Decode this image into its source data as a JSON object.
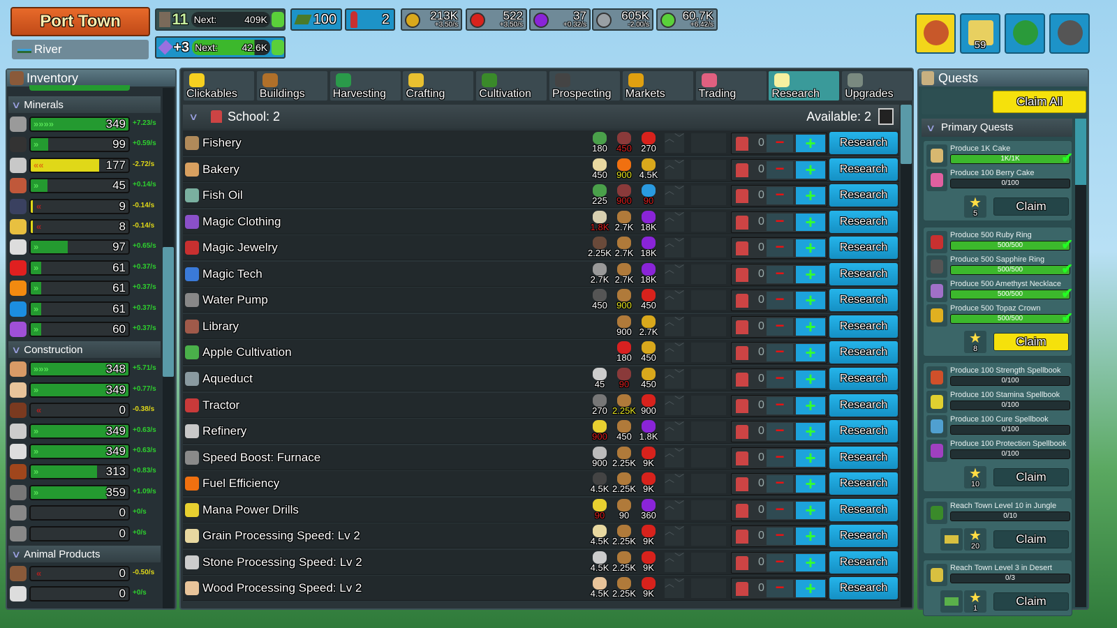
{
  "header": {
    "town": "Port Town",
    "biome": "River",
    "level": {
      "value": "11",
      "next_label": "Next:",
      "next_value": "409K"
    },
    "prestige": {
      "value": "+3",
      "next_label": "Next:",
      "next_value": "42.6K"
    },
    "land": "100",
    "population": "2",
    "currencies": [
      {
        "icon": "gold-coin-icon",
        "color": "#d9a81c",
        "value": "213K",
        "rate": "+3.50/s"
      },
      {
        "icon": "ruby-coin-icon",
        "color": "#d8221c",
        "value": "522",
        "rate": "+3.50/s"
      },
      {
        "icon": "amethyst-coin-icon",
        "color": "#8a24d8",
        "value": "37",
        "rate": "+0.32/s"
      },
      {
        "icon": "silver-coin-icon",
        "color": "#9aa0a4",
        "value": "605K",
        "rate": "-2.00/s"
      },
      {
        "icon": "xp-icon",
        "color": "#5ad03a",
        "value": "60.7K",
        "rate": "+6.42/s"
      }
    ],
    "buttons": [
      {
        "icon": "treasure-chest-icon",
        "color": "#f3d51a"
      },
      {
        "icon": "star-icon",
        "color": "#1d93c8",
        "badge": "59"
      },
      {
        "icon": "globe-icon",
        "color": "#1d93c8"
      },
      {
        "icon": "gear-icon",
        "color": "#1d93c8"
      }
    ]
  },
  "inventory": {
    "title": "Inventory",
    "sections": [
      {
        "name": "Minerals",
        "items": [
          {
            "value": "349",
            "rate": "+7.23/s",
            "fill": 1.0,
            "trend": "up",
            "arrows": ">>>>",
            "color": "#9a9a9a"
          },
          {
            "value": "99",
            "rate": "+0.59/s",
            "fill": 0.18,
            "trend": "up",
            "arrows": ">",
            "color": "#333"
          },
          {
            "value": "177",
            "rate": "-2.72/s",
            "fill": 0.7,
            "trend": "down",
            "arrows": "<<",
            "color": "#c8c8c8"
          },
          {
            "value": "45",
            "rate": "+0.14/s",
            "fill": 0.17,
            "trend": "up",
            "arrows": ">",
            "color": "#c0583a"
          },
          {
            "value": "9",
            "rate": "-0.14/s",
            "fill": 0.02,
            "trend": "down",
            "arrows": "<",
            "color": "#3a4160"
          },
          {
            "value": "8",
            "rate": "-0.14/s",
            "fill": 0.02,
            "trend": "down",
            "arrows": "<",
            "color": "#e8c040"
          },
          {
            "value": "97",
            "rate": "+0.65/s",
            "fill": 0.38,
            "trend": "up",
            "arrows": ">",
            "color": "#ddd"
          },
          {
            "value": "61",
            "rate": "+0.37/s",
            "fill": 0.11,
            "trend": "up",
            "arrows": ">",
            "color": "#e02020"
          },
          {
            "value": "61",
            "rate": "+0.37/s",
            "fill": 0.11,
            "trend": "up",
            "arrows": ">",
            "color": "#f28a10"
          },
          {
            "value": "61",
            "rate": "+0.37/s",
            "fill": 0.11,
            "trend": "up",
            "arrows": ">",
            "color": "#1c8ee0"
          },
          {
            "value": "60",
            "rate": "+0.37/s",
            "fill": 0.11,
            "trend": "up",
            "arrows": ">",
            "color": "#a050d8"
          }
        ]
      },
      {
        "name": "Construction",
        "items": [
          {
            "value": "348",
            "rate": "+5.71/s",
            "fill": 1.0,
            "trend": "up",
            "arrows": ">>>",
            "color": "#d89a66"
          },
          {
            "value": "349",
            "rate": "+0.77/s",
            "fill": 1.0,
            "trend": "up",
            "arrows": ">",
            "color": "#e8c49a"
          },
          {
            "value": "0",
            "rate": "-0.38/s",
            "fill": 0,
            "trend": "down",
            "arrows": "<",
            "color": "#7a3a20"
          },
          {
            "value": "349",
            "rate": "+0.63/s",
            "fill": 1.0,
            "trend": "up",
            "arrows": ">",
            "color": "#ccc"
          },
          {
            "value": "349",
            "rate": "+0.63/s",
            "fill": 1.0,
            "trend": "up",
            "arrows": ">",
            "color": "#ddd"
          },
          {
            "value": "313",
            "rate": "+0.83/s",
            "fill": 0.68,
            "trend": "up",
            "arrows": ">",
            "color": "#a0461c"
          },
          {
            "value": "359",
            "rate": "+1.09/s",
            "fill": 0.78,
            "trend": "up",
            "arrows": ">",
            "color": "#777"
          },
          {
            "value": "0",
            "rate": "+0/s",
            "fill": 0,
            "trend": "flat",
            "arrows": "",
            "color": "#888"
          },
          {
            "value": "0",
            "rate": "+0/s",
            "fill": 0,
            "trend": "flat",
            "arrows": "",
            "color": "#888"
          }
        ]
      },
      {
        "name": "Animal Products",
        "items": [
          {
            "value": "0",
            "rate": "-0.50/s",
            "fill": 0,
            "trend": "down",
            "arrows": "<",
            "color": "#8a5a3a"
          },
          {
            "value": "0",
            "rate": "+0/s",
            "fill": 0,
            "trend": "flat",
            "arrows": "",
            "color": "#ddd"
          }
        ]
      }
    ]
  },
  "tabs": [
    {
      "label": "Clickables",
      "color": "#f5d020"
    },
    {
      "label": "Buildings",
      "color": "#b0702a"
    },
    {
      "label": "Harvesting",
      "color": "#2a9a4a"
    },
    {
      "label": "Crafting",
      "color": "#e8c030"
    },
    {
      "label": "Cultivation",
      "color": "#3a8a2a"
    },
    {
      "label": "Prospecting",
      "color": "#444"
    },
    {
      "label": "Markets",
      "color": "#e0a010"
    },
    {
      "label": "Trading",
      "color": "#e06080"
    },
    {
      "label": "Research",
      "color": "#f5f0a0",
      "active": true
    },
    {
      "label": "Upgrades",
      "color": "#7a8a80"
    }
  ],
  "research": {
    "school_label": "School: 2",
    "available_label": "Available: 2",
    "button_label": "Research",
    "rows": [
      {
        "name": "Fishery",
        "icon": "#b08a5a",
        "count": "0",
        "costs": [
          {
            "v": "180",
            "c": "white",
            "i": "#4aa04a"
          },
          {
            "v": "450",
            "c": "red",
            "i": "#8a3a3a"
          },
          {
            "v": "270",
            "c": "white",
            "i": "#d8221c"
          }
        ]
      },
      {
        "name": "Bakery",
        "icon": "#d8a060",
        "count": "0",
        "costs": [
          {
            "v": "450",
            "c": "white",
            "i": "#e8d8a0"
          },
          {
            "v": "900",
            "c": "yellow",
            "i": "#f07010"
          },
          {
            "v": "4.5K",
            "c": "white",
            "i": "#d9a81c"
          }
        ]
      },
      {
        "name": "Fish Oil",
        "icon": "#7ab0a0",
        "count": "0",
        "costs": [
          {
            "v": "225",
            "c": "white",
            "i": "#4aa04a"
          },
          {
            "v": "900",
            "c": "red",
            "i": "#8a3a3a"
          },
          {
            "v": "90",
            "c": "red",
            "i": "#2a9ae0"
          }
        ]
      },
      {
        "name": "Magic Clothing",
        "icon": "#8a50c8",
        "count": "0",
        "costs": [
          {
            "v": "1.8K",
            "c": "red",
            "i": "#d8cfb0"
          },
          {
            "v": "2.7K",
            "c": "white",
            "i": "#b07a3a"
          },
          {
            "v": "18K",
            "c": "white",
            "i": "#8a24d8"
          }
        ]
      },
      {
        "name": "Magic Jewelry",
        "icon": "#c83030",
        "count": "0",
        "costs": [
          {
            "v": "2.25K",
            "c": "white",
            "i": "#6a4a3a"
          },
          {
            "v": "2.7K",
            "c": "white",
            "i": "#b07a3a"
          },
          {
            "v": "18K",
            "c": "white",
            "i": "#8a24d8"
          }
        ]
      },
      {
        "name": "Magic Tech",
        "icon": "#3a7ad8",
        "count": "0",
        "costs": [
          {
            "v": "2.7K",
            "c": "white",
            "i": "#999"
          },
          {
            "v": "2.7K",
            "c": "white",
            "i": "#b07a3a"
          },
          {
            "v": "18K",
            "c": "white",
            "i": "#8a24d8"
          }
        ]
      },
      {
        "name": "Water Pump",
        "icon": "#888",
        "count": "0",
        "costs": [
          {
            "v": "450",
            "c": "white",
            "i": "#555"
          },
          {
            "v": "900",
            "c": "yellow",
            "i": "#b07a3a"
          },
          {
            "v": "450",
            "c": "white",
            "i": "#d8221c"
          }
        ]
      },
      {
        "name": "Library",
        "icon": "#a05a4a",
        "count": "0",
        "costs": [
          {
            "v": "900",
            "c": "white",
            "i": "#b07a3a"
          },
          {
            "v": "2.7K",
            "c": "white",
            "i": "#d9a81c"
          }
        ]
      },
      {
        "name": "Apple Cultivation",
        "icon": "#4ab04a",
        "count": "0",
        "costs": [
          {
            "v": "180",
            "c": "white",
            "i": "#d82020"
          },
          {
            "v": "450",
            "c": "white",
            "i": "#d9a81c"
          }
        ]
      },
      {
        "name": "Aqueduct",
        "icon": "#8a9aa0",
        "count": "0",
        "costs": [
          {
            "v": "45",
            "c": "white",
            "i": "#ccc"
          },
          {
            "v": "90",
            "c": "red",
            "i": "#8a3a3a"
          },
          {
            "v": "450",
            "c": "white",
            "i": "#d9a81c"
          }
        ]
      },
      {
        "name": "Tractor",
        "icon": "#c83a3a",
        "count": "0",
        "costs": [
          {
            "v": "270",
            "c": "white",
            "i": "#777"
          },
          {
            "v": "2.25K",
            "c": "yellow",
            "i": "#b07a3a"
          },
          {
            "v": "900",
            "c": "white",
            "i": "#d8221c"
          }
        ]
      },
      {
        "name": "Refinery",
        "icon": "#c8c8c8",
        "count": "0",
        "costs": [
          {
            "v": "900",
            "c": "red",
            "i": "#e8d030"
          },
          {
            "v": "450",
            "c": "white",
            "i": "#b07a3a"
          },
          {
            "v": "1.8K",
            "c": "white",
            "i": "#8a24d8"
          }
        ]
      },
      {
        "name": "Speed Boost: Furnace",
        "icon": "#8a8a8a",
        "count": "0",
        "costs": [
          {
            "v": "900",
            "c": "white",
            "i": "#bbb"
          },
          {
            "v": "2.25K",
            "c": "white",
            "i": "#b07a3a"
          },
          {
            "v": "9K",
            "c": "white",
            "i": "#d8221c"
          }
        ]
      },
      {
        "name": "Fuel Efficiency",
        "icon": "#f07010",
        "count": "0",
        "costs": [
          {
            "v": "4.5K",
            "c": "white",
            "i": "#444"
          },
          {
            "v": "2.25K",
            "c": "white",
            "i": "#b07a3a"
          },
          {
            "v": "9K",
            "c": "white",
            "i": "#d8221c"
          }
        ]
      },
      {
        "name": "Mana Power Drills",
        "icon": "#e8d030",
        "count": "0",
        "costs": [
          {
            "v": "90",
            "c": "red",
            "i": "#e8d030"
          },
          {
            "v": "90",
            "c": "white",
            "i": "#b07a3a"
          },
          {
            "v": "360",
            "c": "white",
            "i": "#8a24d8"
          }
        ]
      },
      {
        "name": "Grain Processing Speed: Lv 2",
        "icon": "#e8d8a0",
        "count": "0",
        "costs": [
          {
            "v": "4.5K",
            "c": "white",
            "i": "#e8d8a0"
          },
          {
            "v": "2.25K",
            "c": "white",
            "i": "#b07a3a"
          },
          {
            "v": "9K",
            "c": "white",
            "i": "#d8221c"
          }
        ]
      },
      {
        "name": "Stone Processing Speed: Lv 2",
        "icon": "#ccc",
        "count": "0",
        "costs": [
          {
            "v": "4.5K",
            "c": "white",
            "i": "#ccc"
          },
          {
            "v": "2.25K",
            "c": "white",
            "i": "#b07a3a"
          },
          {
            "v": "9K",
            "c": "white",
            "i": "#d8221c"
          }
        ]
      },
      {
        "name": "Wood Processing Speed: Lv 2",
        "icon": "#e8c49a",
        "count": "0",
        "costs": [
          {
            "v": "4.5K",
            "c": "white",
            "i": "#e8c49a"
          },
          {
            "v": "2.25K",
            "c": "white",
            "i": "#b07a3a"
          },
          {
            "v": "9K",
            "c": "white",
            "i": "#d8221c"
          }
        ]
      }
    ]
  },
  "quests": {
    "title": "Quests",
    "claim_all": "Claim All",
    "section": "Primary Quests",
    "claim_label": "Claim",
    "groups": [
      {
        "reward": "5",
        "ready": false,
        "items": [
          {
            "label": "Produce 1K Cake",
            "progress": "1K/1K",
            "done": true,
            "icon": "#d8b870"
          },
          {
            "label": "Produce 100 Berry Cake",
            "progress": "0/100",
            "done": false,
            "icon": "#e060a0"
          }
        ]
      },
      {
        "reward": "8",
        "ready": true,
        "items": [
          {
            "label": "Produce 500 Ruby Ring",
            "progress": "500/500",
            "done": true,
            "icon": "#c83030"
          },
          {
            "label": "Produce 500 Sapphire Ring",
            "progress": "500/500",
            "done": true,
            "icon": "#555"
          },
          {
            "label": "Produce 500 Amethyst Necklace",
            "progress": "500/500",
            "done": true,
            "icon": "#a070c8"
          },
          {
            "label": "Produce 500 Topaz Crown",
            "progress": "500/500",
            "done": true,
            "icon": "#e0b020"
          }
        ]
      },
      {
        "reward": "10",
        "ready": false,
        "items": [
          {
            "label": "Produce 100 Strength Spellbook",
            "progress": "0/100",
            "done": false,
            "icon": "#d0502a"
          },
          {
            "label": "Produce 100 Stamina Spellbook",
            "progress": "0/100",
            "done": false,
            "icon": "#e0d030"
          },
          {
            "label": "Produce 100 Cure Spellbook",
            "progress": "0/100",
            "done": false,
            "icon": "#50a0d0"
          },
          {
            "label": "Produce 100 Protection Spellbook",
            "progress": "0/100",
            "done": false,
            "icon": "#a040c0"
          }
        ]
      },
      {
        "reward": "20",
        "ready": false,
        "extra": "desert-icon",
        "items": [
          {
            "label": "Reach Town Level 10 in Jungle",
            "progress": "0/10",
            "done": false,
            "icon": "#3a8a2a"
          }
        ]
      },
      {
        "reward": "1",
        "ready": false,
        "extra": "cactus-icon",
        "items": [
          {
            "label": "Reach Town Level 3 in Desert",
            "progress": "0/3",
            "done": false,
            "icon": "#d8c040"
          }
        ]
      }
    ]
  }
}
